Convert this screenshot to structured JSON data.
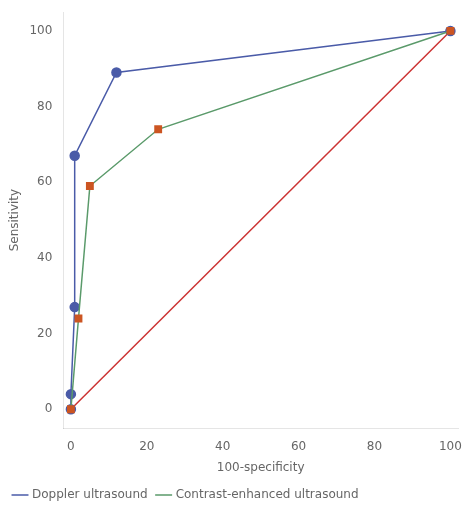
{
  "chart_data": {
    "type": "line",
    "xlabel": "100-specificity",
    "ylabel": "Sensitivity",
    "xlim": [
      -2,
      102
    ],
    "ylim": [
      -5,
      105
    ],
    "xticks": [
      0,
      20,
      40,
      60,
      80,
      100
    ],
    "yticks": [
      0,
      20,
      40,
      60,
      80,
      100
    ],
    "grid": false,
    "legend": "bottom",
    "series": [
      {
        "color": "#cc3333",
        "marker": "none",
        "x": [
          0,
          100
        ],
        "values": [
          0,
          100
        ]
      },
      {
        "name": "Doppler ultrasound",
        "color": "#4a5ba8",
        "marker": "circle",
        "x": [
          0,
          0,
          1,
          1,
          12,
          100
        ],
        "values": [
          0,
          4,
          27,
          67,
          89,
          100
        ]
      },
      {
        "name": "Contrast-enhanced ultrasound",
        "color": "#5a9a6a",
        "marker": "none",
        "x": [
          0,
          2,
          5,
          23,
          100
        ],
        "values": [
          0,
          24,
          59,
          74,
          100
        ]
      },
      {
        "type": "scatter",
        "color": "#cc5522",
        "marker": "square",
        "x": [
          0,
          2,
          5,
          23,
          100
        ],
        "values": [
          0,
          24,
          59,
          74,
          100
        ]
      }
    ]
  }
}
